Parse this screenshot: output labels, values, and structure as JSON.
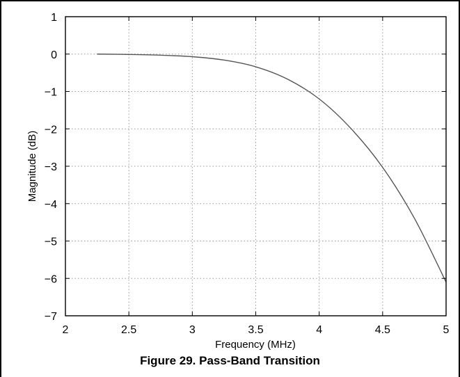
{
  "caption": "Figure 29. Pass-Band Transition",
  "chart_data": {
    "type": "line",
    "title": "",
    "xlabel": "Frequency (MHz)",
    "ylabel": "Magnitude (dB)",
    "xlim": [
      2,
      5
    ],
    "ylim": [
      -7,
      1
    ],
    "xticks": [
      2,
      2.5,
      3,
      3.5,
      4,
      4.5,
      5
    ],
    "xtick_labels": [
      "2",
      "2.5",
      "3",
      "3.5",
      "4",
      "4.5",
      "5"
    ],
    "yticks": [
      1,
      0,
      -1,
      -2,
      -3,
      -4,
      -5,
      -6,
      -7
    ],
    "ytick_labels": [
      "1",
      "0",
      "−1",
      "−2",
      "−3",
      "−4",
      "−5",
      "−6",
      "−7"
    ],
    "grid": true,
    "line_color": "#555555",
    "series": [
      {
        "x": [
          2.25,
          2.5,
          2.75,
          3.0,
          3.25,
          3.5,
          3.75,
          4.0,
          4.25,
          4.5,
          4.75,
          5.0
        ],
        "y": [
          0.0,
          -0.01,
          -0.03,
          -0.07,
          -0.16,
          -0.34,
          -0.67,
          -1.2,
          -1.99,
          -3.03,
          -4.39,
          -6.1
        ]
      }
    ]
  }
}
